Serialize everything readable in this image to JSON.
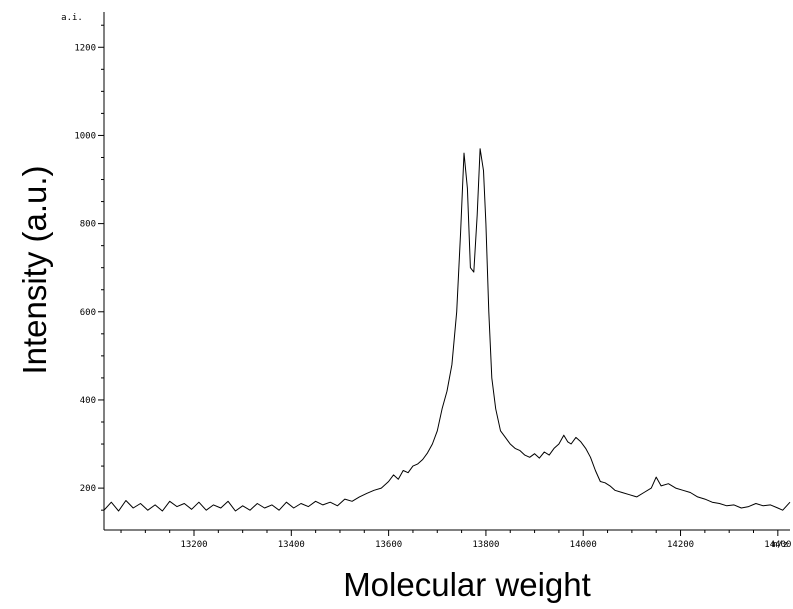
{
  "chart_data": {
    "type": "line",
    "title": "",
    "xlabel": "Molecular weight",
    "ylabel": "Intensity (a.u.)",
    "x_unit": "m/z",
    "y_unit": "a.i.",
    "xlim": [
      13015,
      14425
    ],
    "ylim": [
      105,
      1280
    ],
    "x_ticks": [
      "13200",
      "13400",
      "13600",
      "13800",
      "14000",
      "14200",
      "14400"
    ],
    "y_ticks": [
      "200",
      "400",
      "600",
      "800",
      "1000",
      "1200"
    ],
    "grid": false,
    "series": [
      {
        "x": [
          13015,
          13030,
          13045,
          13060,
          13075,
          13090,
          13105,
          13120,
          13135,
          13150,
          13165,
          13180,
          13195,
          13210,
          13225,
          13240,
          13255,
          13270,
          13285,
          13300,
          13315,
          13330,
          13345,
          13360,
          13375,
          13390,
          13405,
          13420,
          13435,
          13450,
          13465,
          13480,
          13495,
          13510,
          13525,
          13540,
          13555,
          13570,
          13585,
          13600,
          13610,
          13620,
          13630,
          13640,
          13650,
          13660,
          13670,
          13680,
          13690,
          13700,
          13710,
          13720,
          13730,
          13740,
          13748,
          13755,
          13762,
          13768,
          13775,
          13782,
          13788,
          13795,
          13800,
          13806,
          13812,
          13820,
          13830,
          13840,
          13850,
          13860,
          13870,
          13880,
          13890,
          13900,
          13910,
          13920,
          13930,
          13940,
          13950,
          13960,
          13968,
          13975,
          13985,
          13995,
          14005,
          14015,
          14025,
          14035,
          14045,
          14055,
          14065,
          14080,
          14095,
          14110,
          14125,
          14140,
          14150,
          14160,
          14175,
          14190,
          14205,
          14220,
          14235,
          14250,
          14265,
          14280,
          14295,
          14310,
          14325,
          14340,
          14355,
          14370,
          14385,
          14400,
          14410,
          14425
        ],
        "y": [
          150,
          168,
          148,
          172,
          155,
          165,
          150,
          162,
          148,
          170,
          158,
          165,
          152,
          168,
          150,
          162,
          155,
          170,
          148,
          160,
          150,
          165,
          155,
          162,
          150,
          168,
          155,
          165,
          158,
          170,
          162,
          168,
          160,
          175,
          170,
          180,
          188,
          195,
          200,
          215,
          230,
          220,
          240,
          235,
          250,
          255,
          265,
          280,
          300,
          330,
          380,
          420,
          480,
          600,
          780,
          960,
          880,
          700,
          690,
          820,
          970,
          920,
          800,
          600,
          450,
          380,
          330,
          315,
          300,
          290,
          285,
          275,
          270,
          278,
          268,
          282,
          275,
          290,
          300,
          320,
          305,
          300,
          315,
          305,
          290,
          270,
          240,
          215,
          212,
          205,
          195,
          190,
          185,
          180,
          190,
          200,
          225,
          205,
          210,
          200,
          195,
          190,
          180,
          175,
          168,
          165,
          160,
          162,
          155,
          158,
          165,
          160,
          162,
          155,
          150,
          168
        ]
      }
    ]
  }
}
